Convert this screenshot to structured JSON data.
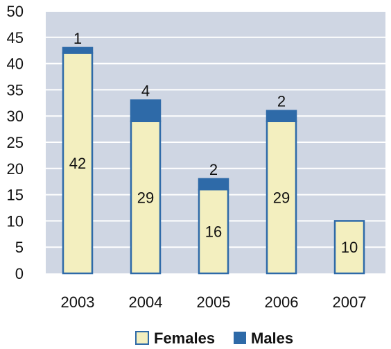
{
  "chart_data": {
    "type": "bar",
    "stacked": true,
    "categories": [
      "2003",
      "2004",
      "2005",
      "2006",
      "2007"
    ],
    "series": [
      {
        "name": "Females",
        "values": [
          42,
          29,
          16,
          29,
          10
        ]
      },
      {
        "name": "Males",
        "values": [
          1,
          4,
          2,
          2,
          0
        ]
      }
    ],
    "segment_labels": {
      "Females": [
        "42",
        "29",
        "16",
        "29",
        "10"
      ],
      "Males": [
        "1",
        "4",
        "2",
        "2",
        ""
      ]
    },
    "ylim": [
      0,
      50
    ],
    "yticks": [
      "0",
      "5",
      "10",
      "15",
      "20",
      "25",
      "30",
      "35",
      "40",
      "45",
      "50"
    ],
    "grid": true,
    "legend_placement": "bottom",
    "colors": {
      "plot_background": "#cfd6e3",
      "grid": "#ffffff",
      "Females": "#f3efbf",
      "Males": "#2e6aa8",
      "bar_border": "#2e6aa8"
    }
  }
}
